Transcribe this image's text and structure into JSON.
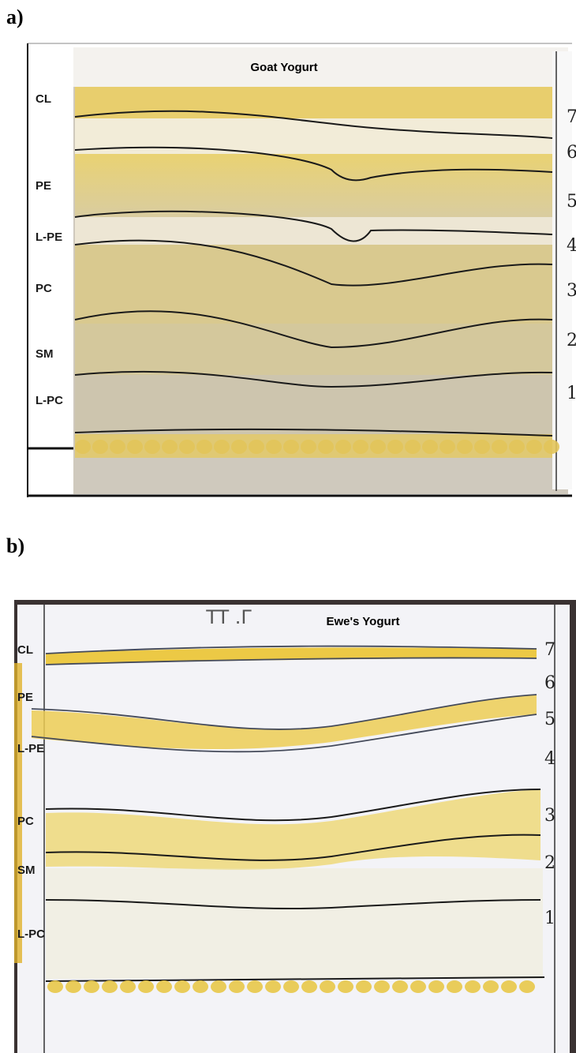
{
  "panels": [
    {
      "label": "a)",
      "title": "Goat Yogurt",
      "lipid_classes": [
        "CL",
        "PE",
        "L-PE",
        "PC",
        "SM",
        "L-PC"
      ],
      "band_numbers": [
        "7",
        "6",
        "5",
        "4",
        "3",
        "2",
        "1"
      ]
    },
    {
      "label": "b)",
      "title": "Ewe's Yogurt",
      "handwriting": "TT .Γ",
      "lipid_classes": [
        "CL",
        "PE",
        "L-PE",
        "PC",
        "SM",
        "L-PC"
      ],
      "band_numbers": [
        "7",
        "6",
        "5",
        "4",
        "3",
        "2",
        "1"
      ]
    }
  ]
}
